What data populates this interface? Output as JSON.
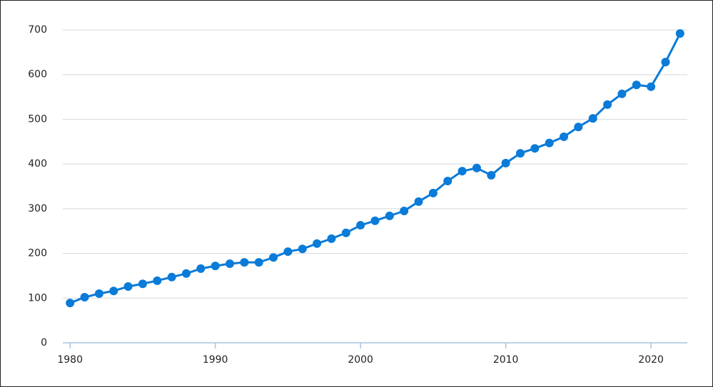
{
  "chart_data": {
    "type": "line",
    "x": [
      1980,
      1981,
      1982,
      1983,
      1984,
      1985,
      1986,
      1987,
      1988,
      1989,
      1990,
      1991,
      1992,
      1993,
      1994,
      1995,
      1996,
      1997,
      1998,
      1999,
      2000,
      2001,
      2002,
      2003,
      2004,
      2005,
      2006,
      2007,
      2008,
      2009,
      2010,
      2011,
      2012,
      2013,
      2014,
      2015,
      2016,
      2017,
      2018,
      2019,
      2020,
      2021,
      2022
    ],
    "series": [
      {
        "color": "#0a7bd8",
        "values": [
          89,
          102,
          110,
          116,
          126,
          132,
          139,
          147,
          155,
          166,
          172,
          177,
          180,
          180,
          191,
          204,
          210,
          222,
          233,
          246,
          263,
          273,
          284,
          295,
          316,
          335,
          362,
          384,
          391,
          375,
          402,
          424,
          435,
          447,
          461,
          483,
          502,
          533,
          557,
          577,
          573,
          628,
          692
        ]
      }
    ],
    "xlim": [
      1979.5,
      2022.5
    ],
    "xticks": [
      1980,
      1990,
      2000,
      2010,
      2020
    ],
    "ylim": [
      0,
      700
    ],
    "yticks": [
      0,
      100,
      200,
      300,
      400,
      500,
      600,
      700
    ],
    "grid": true
  }
}
